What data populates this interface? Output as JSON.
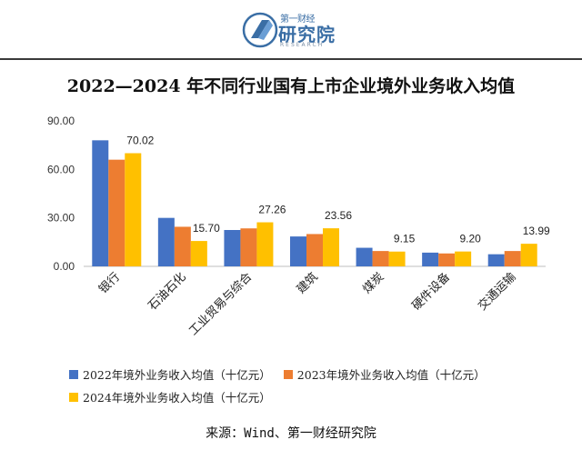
{
  "logo": {
    "top_text": "第一财经",
    "main_text": "研究院",
    "sub_text": "RESEARCH"
  },
  "source": "来源：Wind、第一财经研究院",
  "colors": {
    "s2022": "#4472C4",
    "s2023": "#ED7D31",
    "s2024": "#FFC000"
  },
  "chart_data": {
    "type": "bar",
    "title": "2022—2024 年不同行业国有上市企业境外业务收入均值",
    "categories": [
      "银行",
      "石油石化",
      "工业贸易与综合",
      "建筑",
      "煤炭",
      "硬件设备",
      "交通运输"
    ],
    "series": [
      {
        "name": "2022年境外业务收入均值（十亿元）",
        "values": [
          78.0,
          30.0,
          22.5,
          18.5,
          11.5,
          8.5,
          7.5
        ]
      },
      {
        "name": "2023年境外业务收入均值（十亿元）",
        "values": [
          66.0,
          24.5,
          23.5,
          20.0,
          9.5,
          8.0,
          9.5
        ]
      },
      {
        "name": "2024年境外业务收入均值（十亿元）",
        "values": [
          70.02,
          15.7,
          27.26,
          23.56,
          9.15,
          9.2,
          13.99
        ]
      }
    ],
    "data_labels_2024": [
      "70.02",
      "15.70",
      "27.26",
      "23.56",
      "9.15",
      "9.20",
      "13.99"
    ],
    "y_ticks": [
      "0.00",
      "30.00",
      "60.00",
      "90.00"
    ],
    "ylim": [
      0,
      90
    ],
    "xlabel": "",
    "ylabel": ""
  }
}
